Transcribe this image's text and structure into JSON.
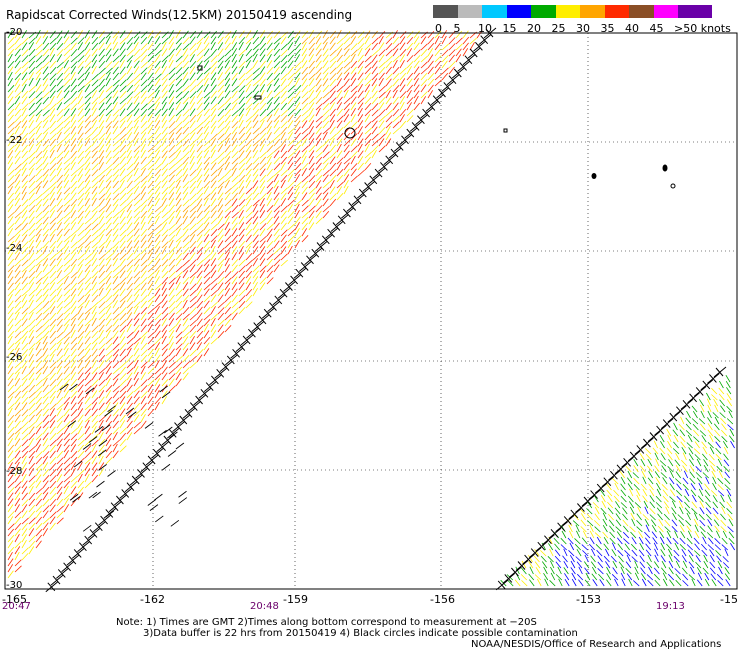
{
  "title": "Rapidscat Corrected Winds(12.5KM) 20150419 ascending",
  "legend": {
    "labels": [
      "0",
      "5",
      "10",
      "15",
      "20",
      "25",
      "30",
      "35",
      "40",
      "45",
      ">50 knots"
    ],
    "colors": [
      "#555555",
      "#bbbbbb",
      "#00c8ff",
      "#0000ff",
      "#00aa00",
      "#ffee00",
      "#ffa500",
      "#ff2a00",
      "#8a4e26",
      "#ff00ff",
      "#6a00a8"
    ]
  },
  "lat_labels": [
    "-20",
    "-22",
    "-24",
    "-26",
    "-28",
    "-30"
  ],
  "lon_labels": [
    "-165",
    "-162",
    "-159",
    "-156",
    "-153",
    "-15"
  ],
  "times": [
    "20:47",
    "20:48",
    "19:13"
  ],
  "note_line1": "Note: 1) Times are GMT 2)Times along bottom correspond to measurement at −20S",
  "note_line2": "3)Data buffer is 22 hrs from 20150419 4) Black circles indicate possible contamination",
  "credit": "NOAA/NESDIS/Office of Research and Applications"
}
